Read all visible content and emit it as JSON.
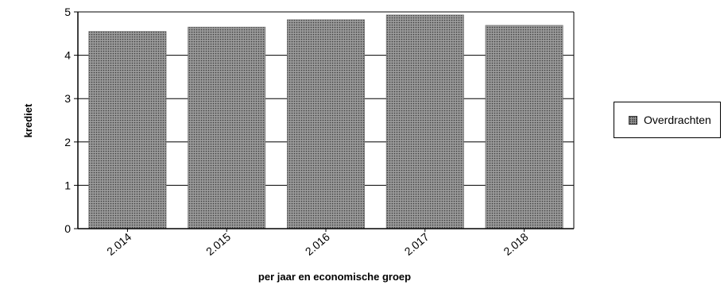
{
  "chart_data": {
    "type": "bar",
    "categories": [
      "2.014",
      "2.015",
      "2.016",
      "2.017",
      "2.018"
    ],
    "series": [
      {
        "name": "Overdrachten",
        "values": [
          4.55,
          4.65,
          4.82,
          4.93,
          4.69
        ]
      }
    ],
    "title": "",
    "xlabel": "per jaar en economische groep",
    "ylabel": "krediet",
    "ylim": [
      0,
      5
    ],
    "yticks": [
      "0",
      "1",
      "2",
      "3",
      "4",
      "5"
    ],
    "grid": true,
    "legend_position": "right",
    "colors": {
      "bar": "#9a9a9a",
      "bar_dots": "#3a3a3a",
      "grid": "#000000"
    }
  }
}
